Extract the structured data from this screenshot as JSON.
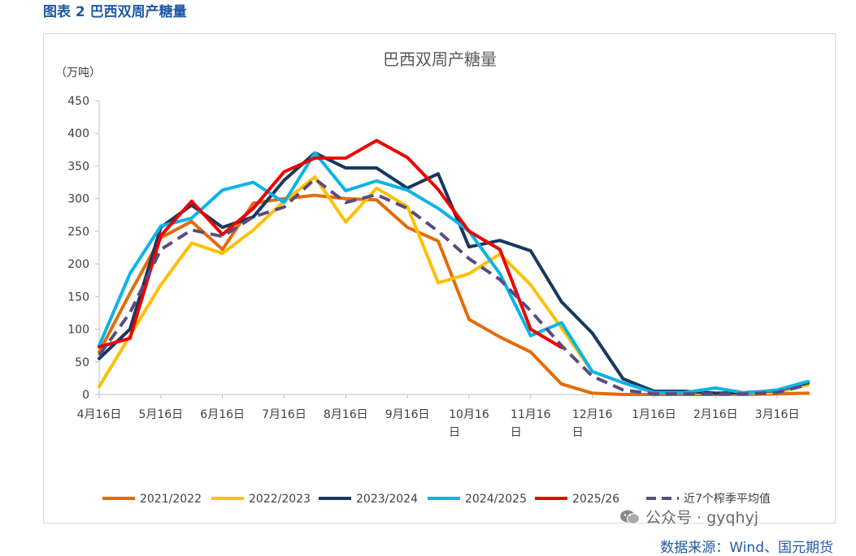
{
  "caption": "图表 2  巴西双周产糖量",
  "source": "数据来源：Wind、国元期货",
  "watermark": "公众号 · gyqhyj",
  "chart_data": {
    "type": "line",
    "title": "巴西双周产糖量",
    "ylabel": "（万吨）",
    "xlabel": "",
    "ylim": [
      0,
      450
    ],
    "yticks": [
      0,
      50,
      100,
      150,
      200,
      250,
      300,
      350,
      400,
      450
    ],
    "x_tick_labels": [
      [
        "4月16日"
      ],
      [
        "5月16日"
      ],
      [
        "6月16日"
      ],
      [
        "7月16日"
      ],
      [
        "8月16日"
      ],
      [
        "9月16日"
      ],
      [
        "10月16",
        "日"
      ],
      [
        "11月16",
        "日"
      ],
      [
        "12月16",
        "日"
      ],
      [
        "1月16日"
      ],
      [
        "2月16日"
      ],
      [
        "3月16日"
      ]
    ],
    "n_points": 24,
    "series": [
      {
        "name": "2021/2022",
        "color": "#e36c0a",
        "dash": false,
        "values": [
          65,
          155,
          240,
          265,
          222,
          293,
          300,
          305,
          300,
          298,
          256,
          235,
          115,
          88,
          65,
          16,
          2,
          0,
          0,
          0,
          0,
          0,
          1,
          2
        ]
      },
      {
        "name": "2022/2023",
        "color": "#ffc000",
        "dash": false,
        "values": [
          12,
          90,
          168,
          232,
          216,
          252,
          296,
          333,
          264,
          316,
          288,
          171,
          185,
          215,
          168,
          102,
          35,
          18,
          3,
          3,
          2,
          2,
          3,
          15
        ]
      },
      {
        "name": "2023/2024",
        "color": "#17375e",
        "dash": false,
        "values": [
          55,
          100,
          256,
          290,
          256,
          272,
          328,
          370,
          347,
          347,
          316,
          338,
          226,
          236,
          220,
          142,
          94,
          24,
          5,
          5,
          2,
          3,
          6,
          18
        ]
      },
      {
        "name": "2024/2025",
        "color": "#0ab4e8",
        "dash": false,
        "values": [
          75,
          185,
          258,
          270,
          313,
          325,
          294,
          370,
          312,
          327,
          313,
          285,
          250,
          185,
          90,
          110,
          35,
          18,
          3,
          3,
          10,
          2,
          7,
          20
        ]
      },
      {
        "name": "2025/26",
        "color": "#ee0000",
        "dash": false,
        "values": [
          73,
          86,
          243,
          296,
          245,
          285,
          341,
          362,
          362,
          389,
          363,
          314,
          250,
          222,
          100,
          72,
          null,
          null,
          null,
          null,
          null,
          null,
          null,
          null
        ]
      },
      {
        "name": "近7个榨季平均值",
        "color": "#5d4a7e",
        "dash": true,
        "values": [
          60,
          125,
          222,
          252,
          242,
          272,
          287,
          330,
          294,
          306,
          285,
          250,
          208,
          176,
          128,
          75,
          28,
          7,
          1,
          1,
          1,
          1,
          3,
          15
        ]
      }
    ],
    "legend_position": "bottom"
  }
}
